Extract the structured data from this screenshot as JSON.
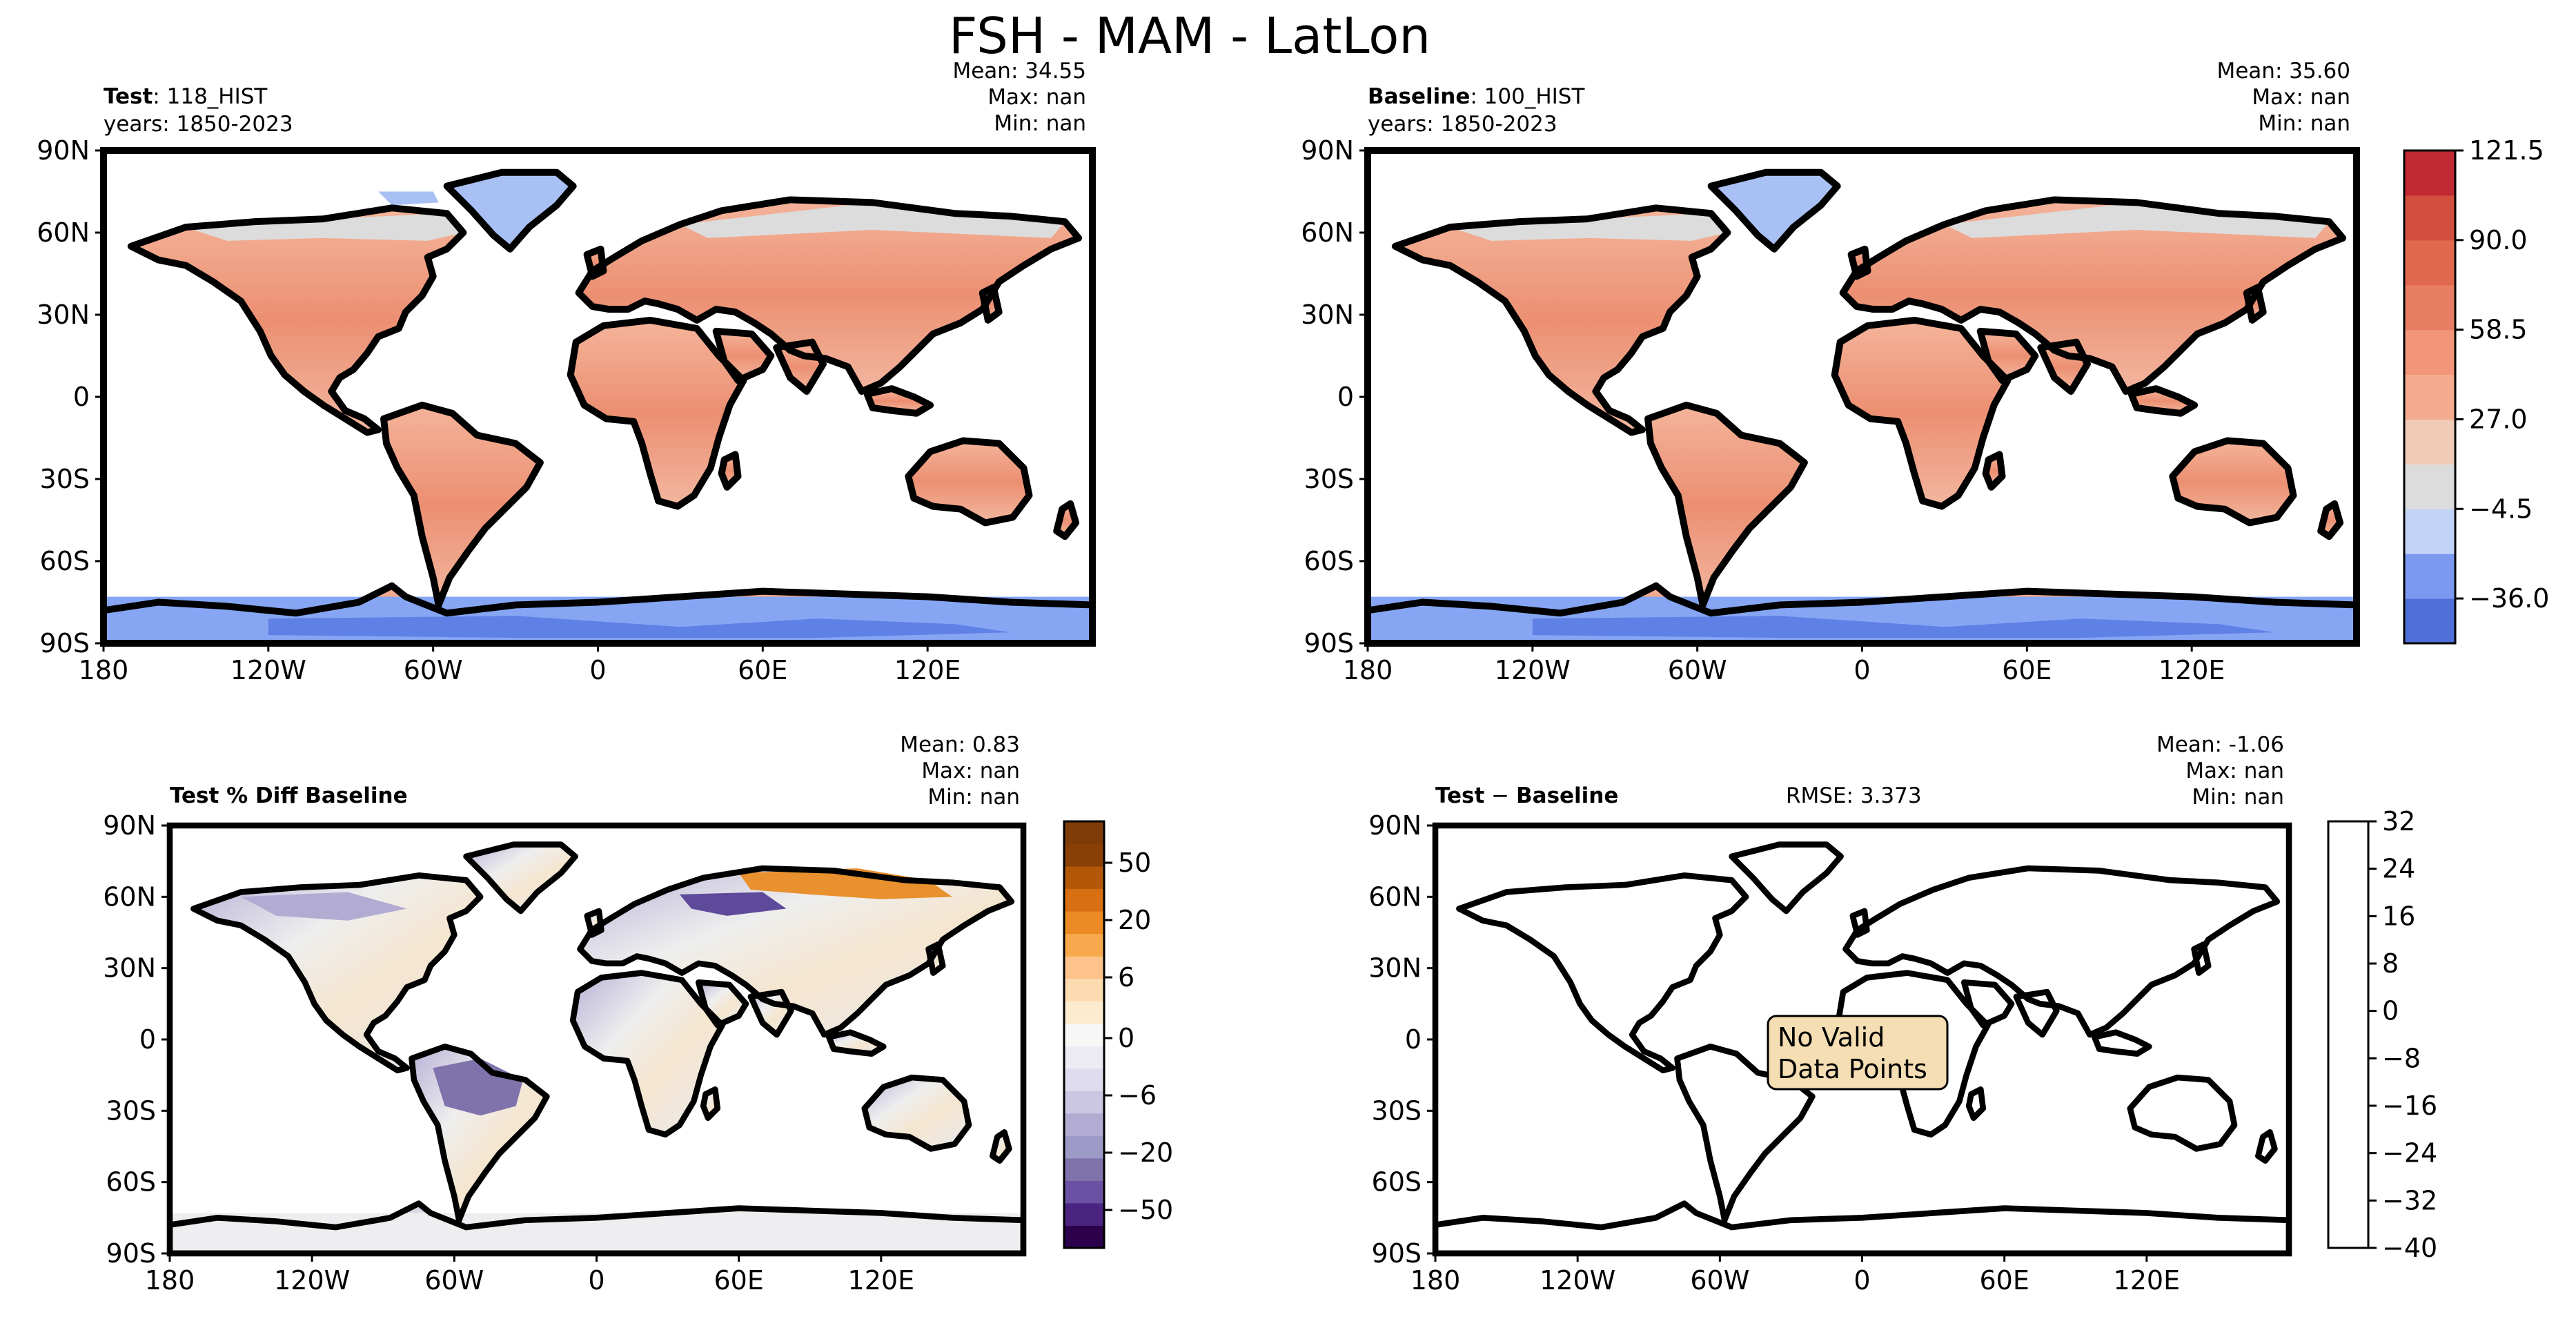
{
  "figure": {
    "title": "FSH - MAM - LatLon"
  },
  "chart_data": [
    {
      "type": "heatmap",
      "panel": "test",
      "label_bold": "Test",
      "label_rest": ": 118_HIST",
      "years": "years: 1850-2023",
      "stats": {
        "mean": "Mean: 34.55",
        "max": "Max:   nan",
        "min": "Min:   nan"
      },
      "lat_ticks": [
        "90N",
        "60N",
        "30N",
        "0",
        "30S",
        "60S",
        "90S"
      ],
      "lon_ticks": [
        "180",
        "120W",
        "60W",
        "0",
        "60E",
        "120E"
      ],
      "colormap": "coolwarm"
    },
    {
      "type": "heatmap",
      "panel": "baseline",
      "label_bold": "Baseline",
      "label_rest": ": 100_HIST",
      "years": "years: 1850-2023",
      "stats": {
        "mean": "Mean: 35.60",
        "max": "Max:   nan",
        "min": "Min:   nan"
      },
      "lat_ticks": [
        "90N",
        "60N",
        "30N",
        "0",
        "30S",
        "60S",
        "90S"
      ],
      "lon_ticks": [
        "180",
        "120W",
        "60W",
        "0",
        "60E",
        "120E"
      ],
      "colormap": "coolwarm",
      "colorbar": {
        "tick_labels": [
          "121.5",
          "90.0",
          "58.5",
          "27.0",
          "−4.5",
          "−36.0"
        ],
        "tick_values": [
          121.5,
          90.0,
          58.5,
          27.0,
          -4.5,
          -36.0
        ],
        "range": [
          -51.75,
          121.5
        ],
        "colors": [
          "#4f6fd9",
          "#7b99f0",
          "#c1d3f7",
          "#dcdcdc",
          "#f0cbb7",
          "#f5ac8e",
          "#f2967a",
          "#e77e64",
          "#e0684e",
          "#d24f40",
          "#c12a35"
        ]
      }
    },
    {
      "type": "heatmap",
      "panel": "pct_diff",
      "label_bold": "Test % Diff Baseline",
      "stats": {
        "mean": "Mean:  0.83",
        "max": "Max:   nan",
        "min": "Min:   nan"
      },
      "lat_ticks": [
        "90N",
        "60N",
        "30N",
        "0",
        "30S",
        "60S",
        "90S"
      ],
      "lon_ticks": [
        "180",
        "120W",
        "60W",
        "0",
        "60E",
        "120E"
      ],
      "colormap": "PuOr_r",
      "colorbar": {
        "tick_labels": [
          "50",
          "20",
          "6",
          "0",
          "−6",
          "−20",
          "−50"
        ],
        "colors": [
          "#2d004b",
          "#4b2380",
          "#6a51a3",
          "#8073ac",
          "#9e9ac8",
          "#b2abd2",
          "#cbc6e2",
          "#dedcee",
          "#eceaf3",
          "#f7f7f7",
          "#fdebd0",
          "#fddbb0",
          "#fdc38a",
          "#f8a84d",
          "#ec8b25",
          "#d87013",
          "#b35806",
          "#8a4005",
          "#7f3b08"
        ]
      }
    },
    {
      "type": "heatmap",
      "panel": "difference",
      "label_bold": "Test",
      "label_mid": " − ",
      "label_rest": "Baseline",
      "rmse": "RMSE: 3.373",
      "stats": {
        "mean": "Mean: -1.06",
        "max": "Max:   nan",
        "min": "Min:   nan"
      },
      "lat_ticks": [
        "90N",
        "60N",
        "30N",
        "0",
        "30S",
        "60S",
        "90S"
      ],
      "lon_ticks": [
        "180",
        "120W",
        "60W",
        "0",
        "60E",
        "120E"
      ],
      "message_line1": "No Valid",
      "message_line2": "Data Points",
      "colorbar": {
        "tick_labels": [
          "32",
          "24",
          "16",
          "8",
          "0",
          "−8",
          "−16",
          "−24",
          "−32",
          "−40"
        ],
        "tick_values": [
          32,
          24,
          16,
          8,
          0,
          -8,
          -16,
          -24,
          -32,
          -40
        ],
        "range": [
          -40,
          32
        ]
      }
    }
  ]
}
